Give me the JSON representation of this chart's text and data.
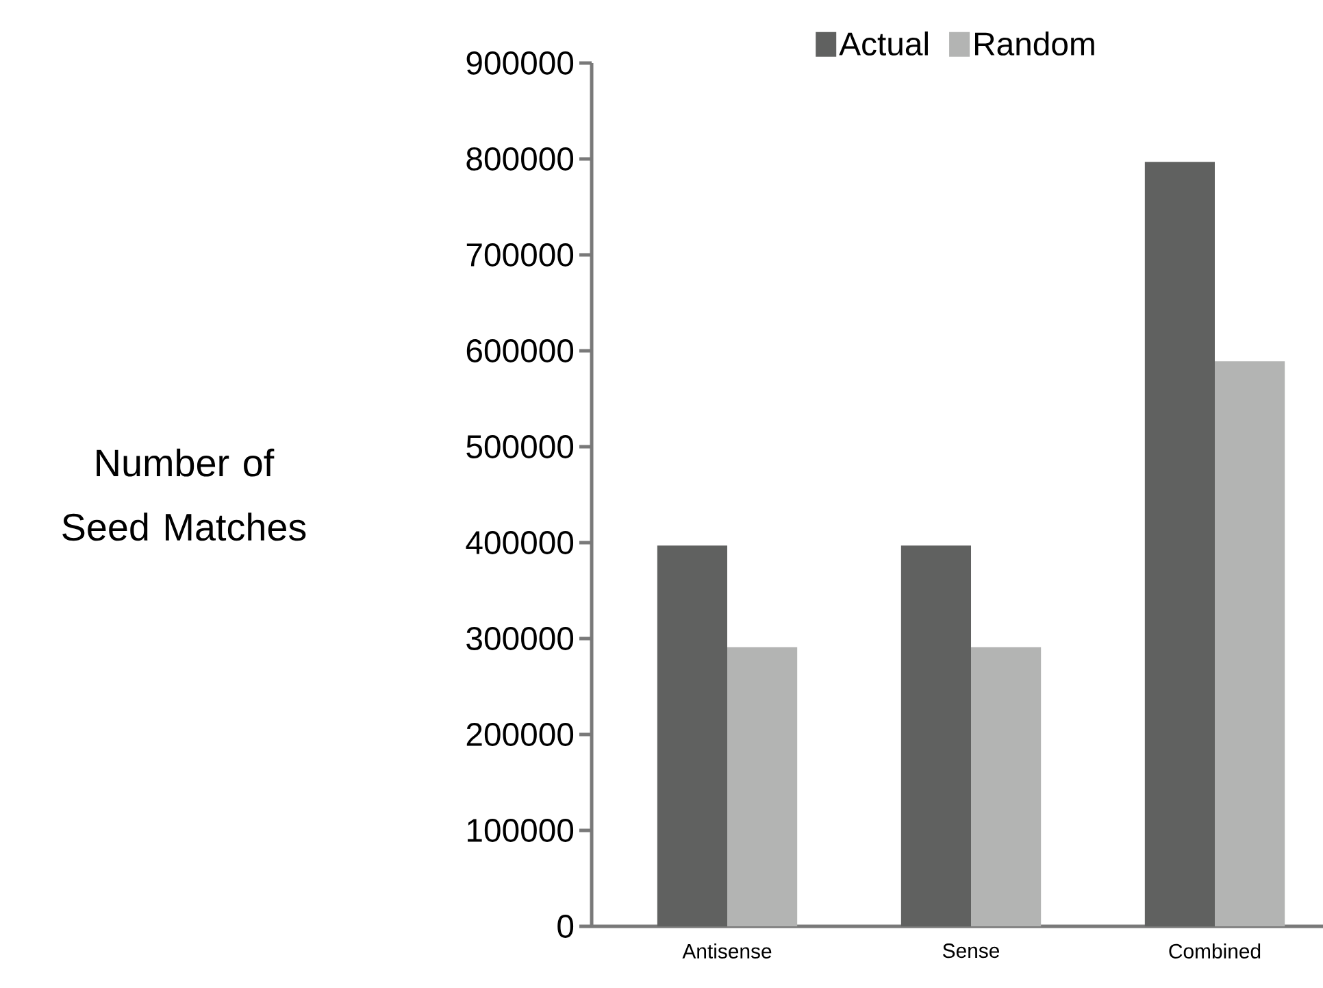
{
  "chart_data": {
    "type": "bar",
    "ylabel": "Number of Seed Matches",
    "categories": [
      "Antisense",
      "Sense",
      "Combined"
    ],
    "series": [
      {
        "name": "Actual",
        "color": "#606160",
        "values": [
          397000,
          397000,
          797000
        ]
      },
      {
        "name": "Random",
        "color": "#b3b4b3",
        "values": [
          291000,
          291000,
          589000
        ]
      }
    ],
    "ylim": [
      0,
      900000
    ],
    "yticks": [
      0,
      100000,
      200000,
      300000,
      400000,
      500000,
      600000,
      700000,
      800000,
      900000
    ],
    "grid": false,
    "legend": "top"
  }
}
